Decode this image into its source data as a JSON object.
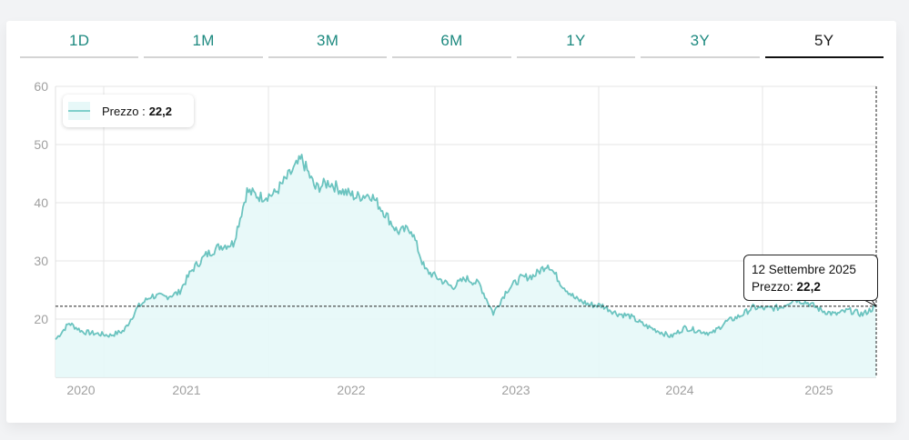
{
  "tabs": [
    {
      "label": "1D",
      "active": false
    },
    {
      "label": "1M",
      "active": false
    },
    {
      "label": "3M",
      "active": false
    },
    {
      "label": "6M",
      "active": false
    },
    {
      "label": "1Y",
      "active": false
    },
    {
      "label": "3Y",
      "active": false
    },
    {
      "label": "5Y",
      "active": true
    }
  ],
  "legend": {
    "label": "Prezzo :",
    "value": "22,2"
  },
  "tooltip": {
    "date": "12 Settembre 2025",
    "label": "Prezzo:",
    "value": "22,2"
  },
  "colors": {
    "line": "#6cc4c0",
    "fill": "#e6f8f8",
    "tab_text": "#1e8a80",
    "tab_active_text": "#1a1a1a",
    "tab_underline": "#d4d4d4",
    "tab_active_underline": "#111111",
    "grid": "#e6e6e6",
    "axis_label": "#a0a0a0"
  },
  "chart_data": {
    "type": "area",
    "title": "",
    "xlabel": "",
    "ylabel": "",
    "ylim": [
      10,
      60
    ],
    "yticks": [
      20,
      30,
      40,
      50,
      60
    ],
    "xtick_labels": [
      "2020",
      "2021",
      "2022",
      "2023",
      "2024",
      "2025"
    ],
    "grid": true,
    "legend_position": "top-left",
    "crosshair": {
      "date": "12 Settembre 2025",
      "value": 22.2
    },
    "series": [
      {
        "name": "Prezzo",
        "x": [
          "2020-09",
          "2020-10",
          "2020-11",
          "2020-12",
          "2021-01",
          "2021-02",
          "2021-03",
          "2021-04",
          "2021-05",
          "2021-06",
          "2021-07",
          "2021-08",
          "2021-09",
          "2021-10",
          "2021-11",
          "2021-12",
          "2022-01",
          "2022-02",
          "2022-03",
          "2022-04",
          "2022-05",
          "2022-06",
          "2022-07",
          "2022-08",
          "2022-09",
          "2022-10",
          "2022-11",
          "2022-12",
          "2023-01",
          "2023-02",
          "2023-03",
          "2023-04",
          "2023-05",
          "2023-06",
          "2023-07",
          "2023-08",
          "2023-09",
          "2023-10",
          "2023-11",
          "2023-12",
          "2024-01",
          "2024-02",
          "2024-03",
          "2024-04",
          "2024-05",
          "2024-06",
          "2024-07",
          "2024-08",
          "2024-09",
          "2024-10",
          "2024-11",
          "2024-12",
          "2025-01",
          "2025-02",
          "2025-03",
          "2025-04",
          "2025-05",
          "2025-06",
          "2025-07",
          "2025-08",
          "2025-09"
        ],
        "values": [
          16.5,
          19.3,
          17.8,
          17.5,
          17.2,
          18.0,
          22.0,
          24.0,
          23.8,
          24.5,
          28.5,
          31.0,
          32.5,
          33.0,
          42.0,
          41.0,
          41.5,
          44.5,
          47.5,
          42.5,
          43.5,
          42.0,
          41.0,
          41.5,
          38.5,
          35.0,
          35.5,
          28.5,
          27.0,
          25.5,
          27.0,
          26.0,
          21.0,
          25.0,
          27.0,
          27.5,
          29.5,
          26.0,
          23.5,
          22.5,
          22.3,
          21.0,
          20.5,
          19.0,
          18.0,
          17.0,
          18.5,
          18.0,
          17.5,
          19.5,
          20.5,
          22.0,
          21.8,
          22.0,
          23.5,
          22.8,
          21.5,
          20.8,
          21.5,
          20.8,
          22.2
        ]
      }
    ]
  }
}
